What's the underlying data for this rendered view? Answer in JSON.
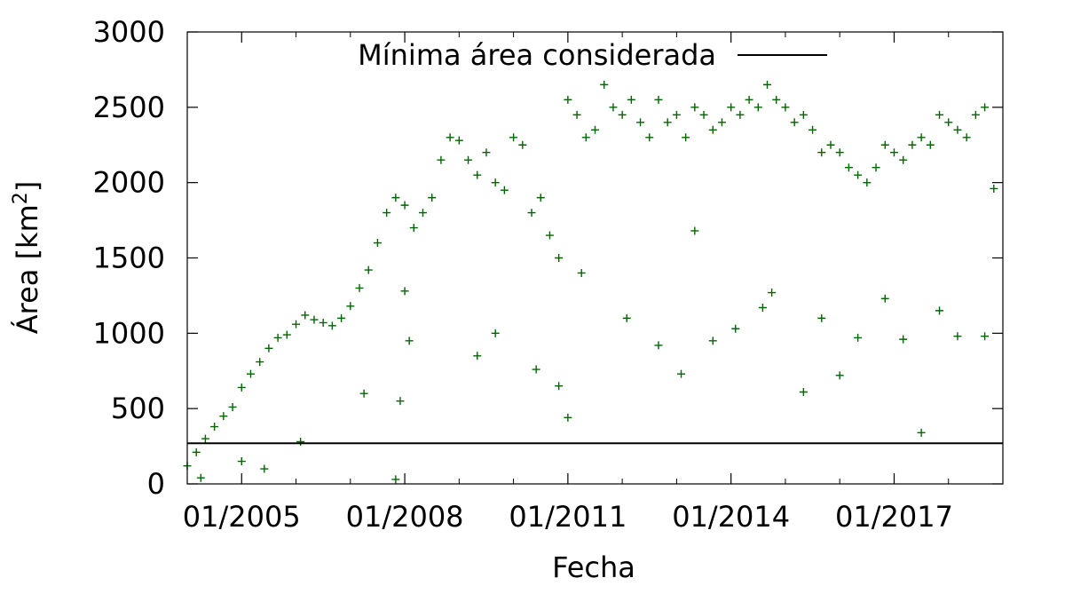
{
  "chart_data": {
    "type": "scatter",
    "title": "",
    "xlabel": "Fecha",
    "ylabel": "Área [km",
    "ylabel_superscript": "2",
    "ylabel_suffix": "]",
    "xlim": [
      "2004-01",
      "2019-01"
    ],
    "ylim": [
      0,
      3000
    ],
    "grid": false,
    "legend_position": "top-center",
    "x_ticks": [
      {
        "value": "2005-01",
        "label": "01/2005"
      },
      {
        "value": "2008-01",
        "label": "01/2008"
      },
      {
        "value": "2011-01",
        "label": "01/2011"
      },
      {
        "value": "2014-01",
        "label": "01/2014"
      },
      {
        "value": "2017-01",
        "label": "01/2017"
      }
    ],
    "x_minor_ticks": [
      "2006-01",
      "2007-01",
      "2009-01",
      "2010-01",
      "2012-01",
      "2013-01",
      "2015-01",
      "2016-01",
      "2018-01"
    ],
    "y_ticks": [
      0,
      500,
      1000,
      1500,
      2000,
      2500,
      3000
    ],
    "series": [
      {
        "name": "",
        "kind": "scatter",
        "marker": "+",
        "color": "#006400",
        "points": [
          [
            "2004-01",
            120
          ],
          [
            "2004-03",
            210
          ],
          [
            "2004-05",
            300
          ],
          [
            "2004-07",
            380
          ],
          [
            "2004-09",
            450
          ],
          [
            "2004-11",
            510
          ],
          [
            "2005-01",
            640
          ],
          [
            "2005-03",
            730
          ],
          [
            "2005-05",
            810
          ],
          [
            "2005-07",
            900
          ],
          [
            "2005-09",
            970
          ],
          [
            "2005-11",
            990
          ],
          [
            "2006-01",
            1060
          ],
          [
            "2006-03",
            1120
          ],
          [
            "2006-05",
            1090
          ],
          [
            "2006-07",
            1070
          ],
          [
            "2006-09",
            1050
          ],
          [
            "2006-11",
            1100
          ],
          [
            "2007-01",
            1180
          ],
          [
            "2007-03",
            1300
          ],
          [
            "2007-05",
            1420
          ],
          [
            "2007-07",
            1600
          ],
          [
            "2007-09",
            1800
          ],
          [
            "2007-11",
            1900
          ],
          [
            "2008-01",
            1850
          ],
          [
            "2008-03",
            1700
          ],
          [
            "2008-05",
            1800
          ],
          [
            "2008-07",
            1900
          ],
          [
            "2008-09",
            2150
          ],
          [
            "2008-11",
            2300
          ],
          [
            "2009-01",
            2280
          ],
          [
            "2009-03",
            2150
          ],
          [
            "2009-05",
            2050
          ],
          [
            "2009-07",
            2200
          ],
          [
            "2009-09",
            2000
          ],
          [
            "2009-11",
            1950
          ],
          [
            "2010-01",
            2300
          ],
          [
            "2010-03",
            2250
          ],
          [
            "2010-05",
            1800
          ],
          [
            "2010-07",
            1900
          ],
          [
            "2010-09",
            1650
          ],
          [
            "2010-11",
            1500
          ],
          [
            "2011-01",
            2550
          ],
          [
            "2011-03",
            2450
          ],
          [
            "2011-05",
            2300
          ],
          [
            "2011-07",
            2350
          ],
          [
            "2011-09",
            2650
          ],
          [
            "2011-11",
            2500
          ],
          [
            "2012-01",
            2450
          ],
          [
            "2012-03",
            2550
          ],
          [
            "2012-05",
            2400
          ],
          [
            "2012-07",
            2300
          ],
          [
            "2012-09",
            2550
          ],
          [
            "2012-11",
            2400
          ],
          [
            "2013-01",
            2450
          ],
          [
            "2013-03",
            2300
          ],
          [
            "2013-05",
            2500
          ],
          [
            "2013-07",
            2450
          ],
          [
            "2013-09",
            2350
          ],
          [
            "2013-11",
            2400
          ],
          [
            "2014-01",
            2500
          ],
          [
            "2014-03",
            2450
          ],
          [
            "2014-05",
            2550
          ],
          [
            "2014-07",
            2500
          ],
          [
            "2014-09",
            2650
          ],
          [
            "2014-11",
            2550
          ],
          [
            "2015-01",
            2500
          ],
          [
            "2015-03",
            2400
          ],
          [
            "2015-05",
            2450
          ],
          [
            "2015-07",
            2350
          ],
          [
            "2015-09",
            2200
          ],
          [
            "2015-11",
            2250
          ],
          [
            "2016-01",
            2200
          ],
          [
            "2016-03",
            2100
          ],
          [
            "2016-05",
            2050
          ],
          [
            "2016-07",
            2000
          ],
          [
            "2016-09",
            2100
          ],
          [
            "2016-11",
            2250
          ],
          [
            "2017-01",
            2200
          ],
          [
            "2017-03",
            2150
          ],
          [
            "2017-05",
            2250
          ],
          [
            "2017-07",
            2300
          ],
          [
            "2017-09",
            2250
          ],
          [
            "2017-11",
            2450
          ],
          [
            "2018-01",
            2400
          ],
          [
            "2018-03",
            2350
          ],
          [
            "2018-05",
            2300
          ],
          [
            "2018-07",
            2450
          ],
          [
            "2018-09",
            2500
          ],
          [
            "2004-04",
            40
          ],
          [
            "2005-01",
            150
          ],
          [
            "2005-06",
            100
          ],
          [
            "2006-02",
            280
          ],
          [
            "2007-04",
            600
          ],
          [
            "2007-11",
            30
          ],
          [
            "2007-12",
            550
          ],
          [
            "2008-01",
            1280
          ],
          [
            "2008-02",
            950
          ],
          [
            "2009-05",
            850
          ],
          [
            "2009-09",
            1000
          ],
          [
            "2010-06",
            760
          ],
          [
            "2010-11",
            650
          ],
          [
            "2011-01",
            440
          ],
          [
            "2011-04",
            1400
          ],
          [
            "2012-02",
            1100
          ],
          [
            "2012-09",
            920
          ],
          [
            "2013-02",
            730
          ],
          [
            "2013-05",
            1680
          ],
          [
            "2013-09",
            950
          ],
          [
            "2014-02",
            1030
          ],
          [
            "2014-08",
            1170
          ],
          [
            "2014-10",
            1270
          ],
          [
            "2015-05",
            610
          ],
          [
            "2015-09",
            1100
          ],
          [
            "2016-01",
            720
          ],
          [
            "2016-05",
            970
          ],
          [
            "2016-11",
            1230
          ],
          [
            "2017-03",
            960
          ],
          [
            "2017-07",
            340
          ],
          [
            "2017-11",
            1150
          ],
          [
            "2018-03",
            980
          ],
          [
            "2018-09",
            980
          ],
          [
            "2018-11",
            1960
          ]
        ]
      },
      {
        "name": "Mínima área considerada",
        "kind": "hline",
        "y": 270,
        "color": "#000000"
      }
    ]
  }
}
